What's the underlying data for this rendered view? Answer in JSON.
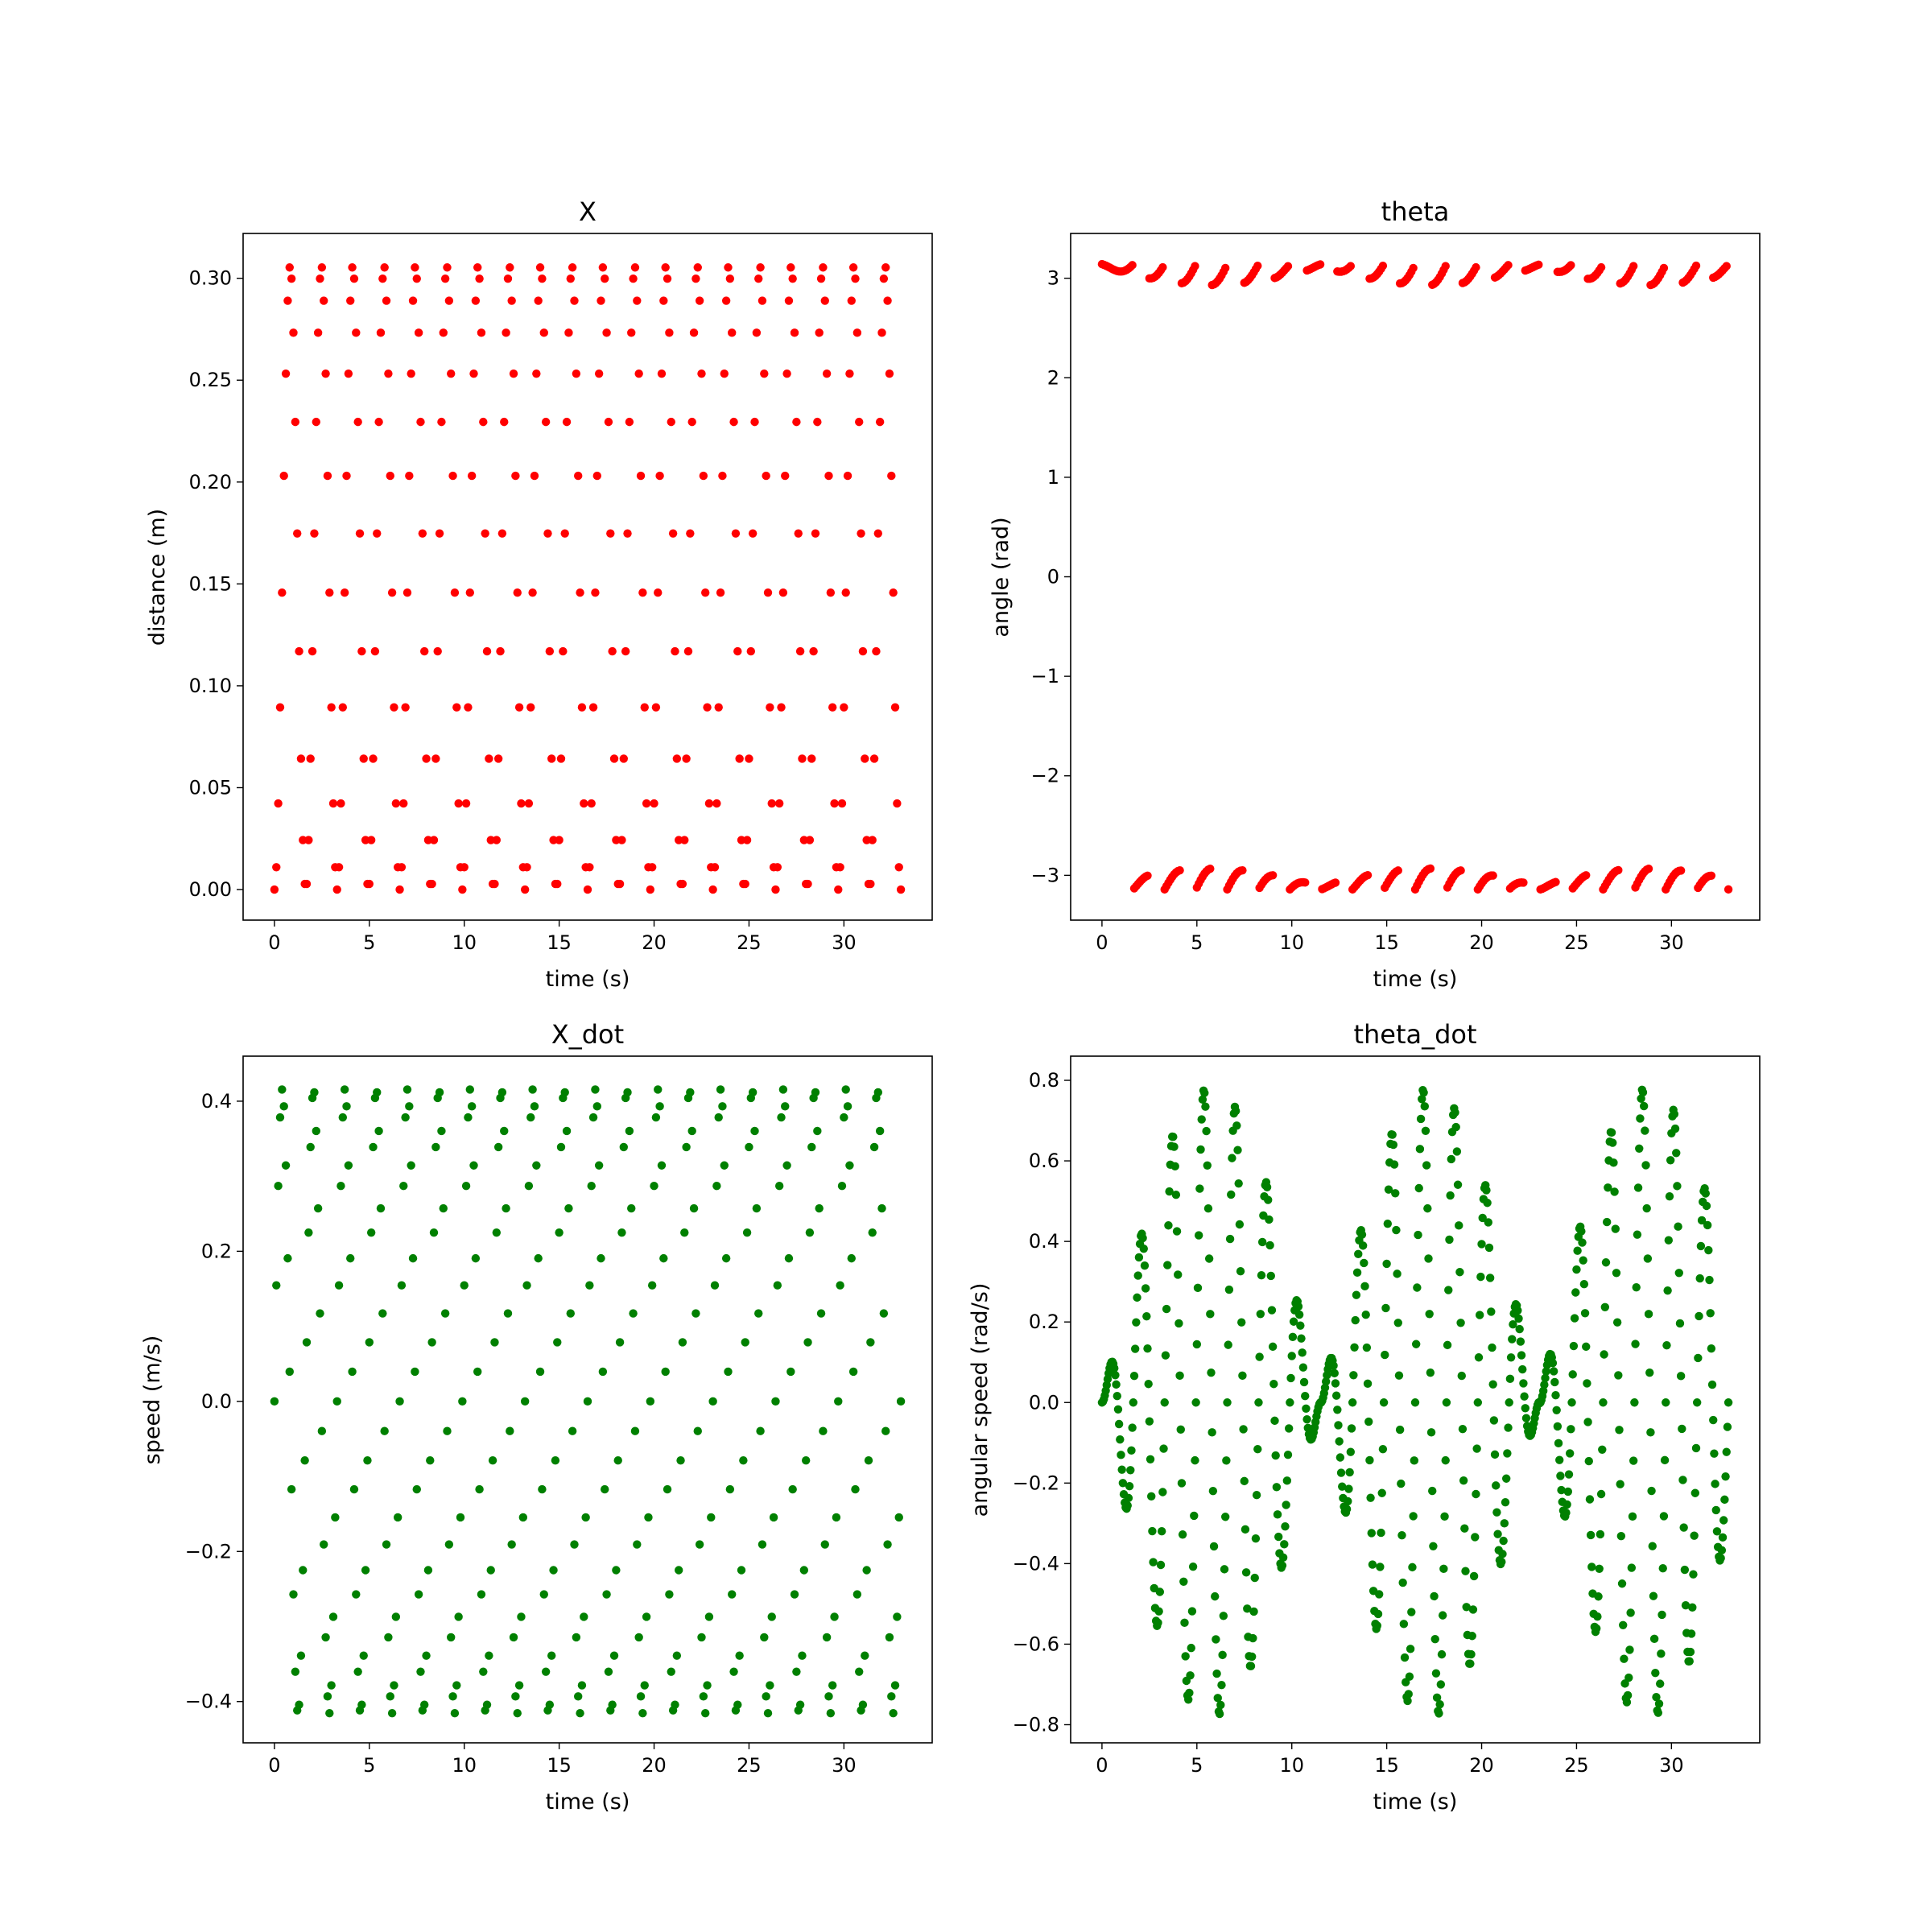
{
  "chart_data": [
    {
      "type": "scatter",
      "title": "X",
      "xlabel": "time (s)",
      "ylabel": "distance (m)",
      "xlim": [
        -1.65,
        34.65
      ],
      "ylim": [
        -0.015,
        0.322
      ],
      "xticks": [
        0,
        5,
        10,
        15,
        20,
        25,
        30
      ],
      "yticks": [
        0.0,
        0.05,
        0.1,
        0.15,
        0.2,
        0.25,
        0.3
      ],
      "ytick_decimals": 2,
      "grid": false,
      "color": "#ff0000",
      "series": [
        {
          "generator": "cart_position",
          "t_start": 0,
          "t_end": 33,
          "dt": 0.1,
          "sweep_period": 1.65,
          "track_length": 0.306,
          "max_speed": 0.416
        }
      ]
    },
    {
      "type": "scatter",
      "title": "theta",
      "xlabel": "time (s)",
      "ylabel": "angle (rad)",
      "xlim": [
        -1.65,
        34.65
      ],
      "ylim": [
        -3.45,
        3.45
      ],
      "xticks": [
        0,
        5,
        10,
        15,
        20,
        25,
        30
      ],
      "yticks": [
        -3,
        -2,
        -1,
        0,
        1,
        2,
        3
      ],
      "ytick_decimals": 0,
      "grid": false,
      "color": "#ff0000",
      "series": [
        {
          "generator": "pendulum_angle",
          "t_start": 0,
          "t_end": 33,
          "dt": 0.1,
          "swing_period": 1.65,
          "beat_period": 11.5,
          "max_amplitude": 0.18,
          "wrap_range": [
            -3.14159,
            3.14159
          ]
        }
      ]
    },
    {
      "type": "scatter",
      "title": "X_dot",
      "xlabel": "time (s)",
      "ylabel": "speed (m/s)",
      "xlim": [
        -1.65,
        34.65
      ],
      "ylim": [
        -0.455,
        0.46
      ],
      "xticks": [
        0,
        5,
        10,
        15,
        20,
        25,
        30
      ],
      "yticks": [
        -0.4,
        -0.2,
        0.0,
        0.2,
        0.4
      ],
      "ytick_decimals": 1,
      "grid": false,
      "color": "#008000",
      "series": [
        {
          "generator": "cart_speed",
          "t_start": 0,
          "t_end": 33,
          "dt": 0.1,
          "sweep_period": 1.65,
          "max_speed": 0.416,
          "levels": [
            0.0,
            0.172,
            0.272,
            0.333,
            0.366,
            0.385,
            0.398,
            0.405,
            0.41,
            0.413,
            0.415,
            0.416
          ]
        }
      ]
    },
    {
      "type": "scatter",
      "title": "theta_dot",
      "xlabel": "time (s)",
      "ylabel": "angular speed (rad/s)",
      "xlim": [
        -1.65,
        34.65
      ],
      "ylim": [
        -0.845,
        0.86
      ],
      "xticks": [
        0,
        5,
        10,
        15,
        20,
        25,
        30
      ],
      "yticks": [
        -0.8,
        -0.6,
        -0.4,
        -0.2,
        0.0,
        0.2,
        0.4,
        0.6,
        0.8
      ],
      "ytick_decimals": 1,
      "grid": false,
      "color": "#008000",
      "series": [
        {
          "generator": "pendulum_speed",
          "t_start": 0,
          "t_end": 33,
          "dt": 0.05,
          "swing_period": 1.65,
          "beat_period": 11.5,
          "max_amplitude": 0.78
        }
      ]
    }
  ]
}
